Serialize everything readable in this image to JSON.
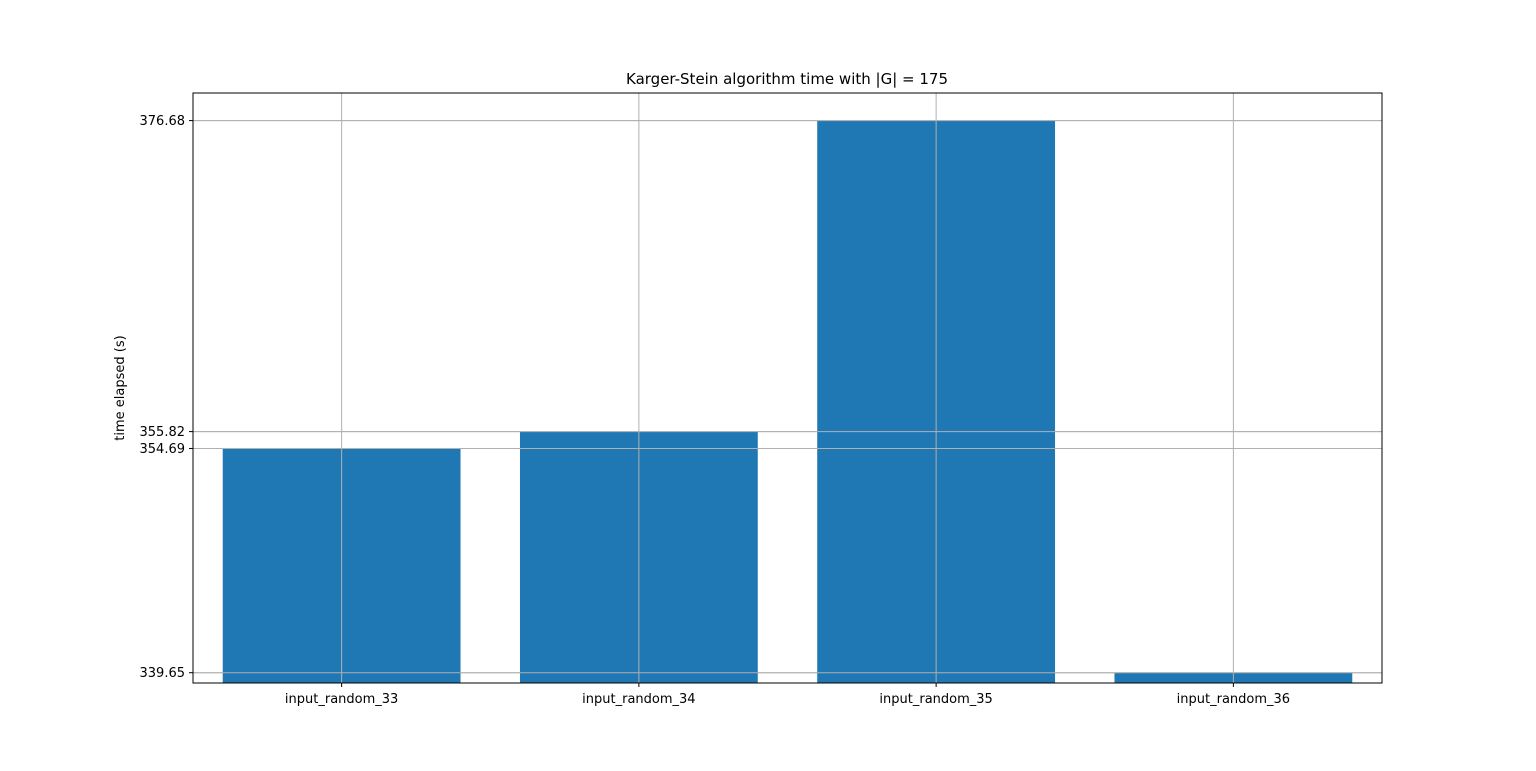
{
  "chart_data": {
    "type": "bar",
    "title": "Karger-Stein algorithm time with |G| = 175",
    "xlabel": "",
    "ylabel": "time elapsed (s)",
    "categories": [
      "input_random_33",
      "input_random_34",
      "input_random_35",
      "input_random_36"
    ],
    "values": [
      354.69,
      355.82,
      376.68,
      339.65
    ],
    "yticks": [
      "339.65",
      "354.69",
      "355.82",
      "376.68"
    ],
    "ylim": [
      338.96,
      378.53
    ],
    "grid": true,
    "colors": {
      "bar": "#1f77b4",
      "grid": "#b0b0b0",
      "axes": "#000000"
    }
  }
}
